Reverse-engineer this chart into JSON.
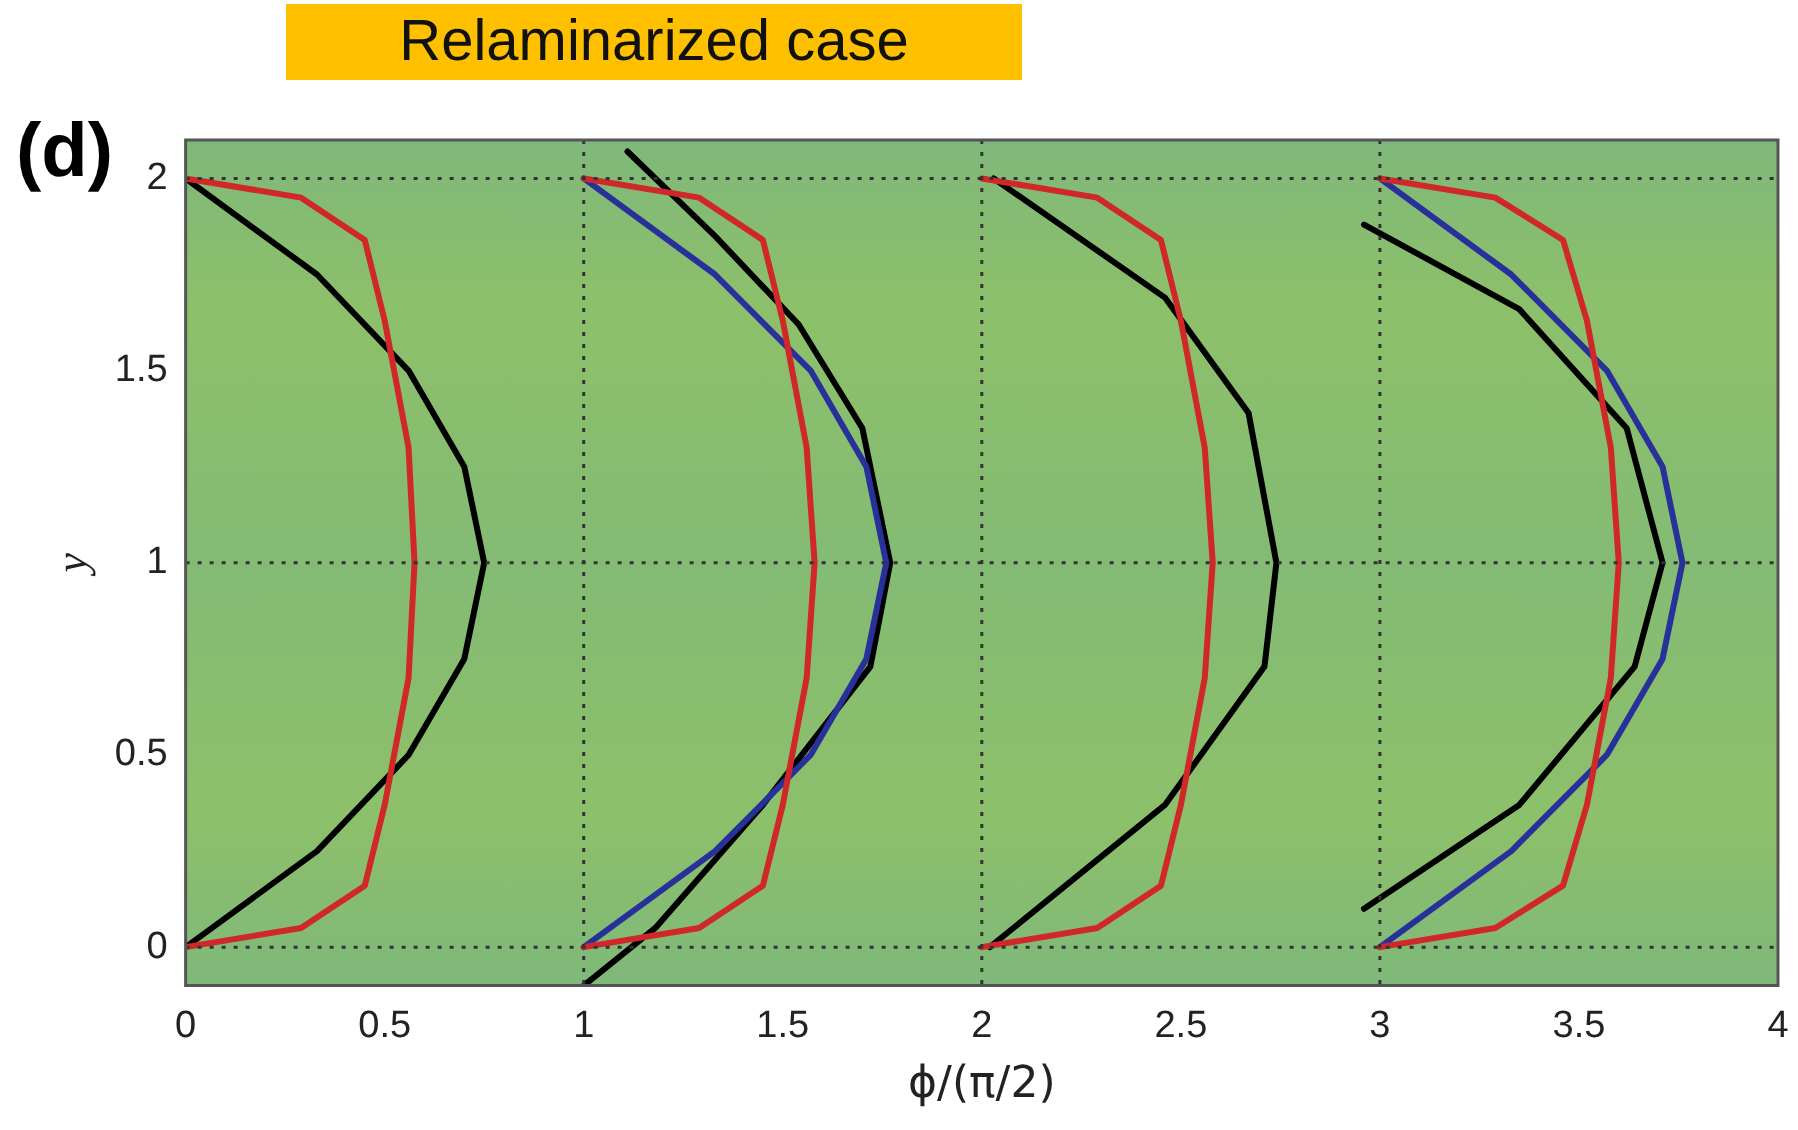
{
  "chart_data": {
    "type": "line",
    "title": "Relaminarized case",
    "xlabel": "ϕ/(π/2)",
    "ylabel": "y",
    "annotations": [
      "(d)"
    ],
    "xlim": [
      0,
      4
    ],
    "ylim": [
      -0.1,
      2.1
    ],
    "xticks": [
      0,
      0.5,
      1,
      1.5,
      2,
      2.5,
      3,
      3.5,
      4
    ],
    "yticks": [
      0,
      0.5,
      1,
      1.5,
      2
    ],
    "grid": false,
    "legend": false,
    "marker": "none",
    "line_style": "solid",
    "ref_lines": [
      {
        "axis": "x",
        "value": 1,
        "line_style": "dotted",
        "color": "#333333"
      },
      {
        "axis": "x",
        "value": 2,
        "line_style": "dotted",
        "color": "#333333"
      },
      {
        "axis": "x",
        "value": 3,
        "line_style": "dotted",
        "color": "#333333"
      },
      {
        "axis": "y",
        "value": 0,
        "line_style": "dotted",
        "color": "#333333"
      },
      {
        "axis": "y",
        "value": 1,
        "line_style": "dotted",
        "color": "#333333"
      },
      {
        "axis": "y",
        "value": 2,
        "line_style": "dotted",
        "color": "#333333"
      }
    ],
    "series": [
      {
        "color": "#d02828",
        "x": [
          0,
          0.29,
          0.45,
          0.5,
          0.56,
          0.575,
          0.56,
          0.5,
          0.45,
          0.29,
          0
        ],
        "values": [
          0,
          0.05,
          0.16,
          0.37,
          0.7,
          1,
          1.3,
          1.63,
          1.84,
          1.95,
          2
        ]
      },
      {
        "color": "#000000",
        "x": [
          0,
          0.33,
          0.56,
          0.7,
          0.75,
          0.7,
          0.56,
          0.33,
          0
        ],
        "values": [
          0,
          0.25,
          0.5,
          0.75,
          1,
          1.25,
          1.5,
          1.75,
          2
        ]
      },
      {
        "color": "#d02828",
        "x": [
          1,
          1.29,
          1.45,
          1.5,
          1.56,
          1.58,
          1.56,
          1.5,
          1.45,
          1.29,
          1
        ],
        "values": [
          0,
          0.05,
          0.16,
          0.37,
          0.7,
          1,
          1.3,
          1.63,
          1.84,
          1.95,
          2
        ]
      },
      {
        "color": "#28309a",
        "x": [
          1,
          1.33,
          1.57,
          1.71,
          1.76,
          1.71,
          1.57,
          1.33,
          1
        ],
        "values": [
          0,
          0.25,
          0.5,
          0.75,
          1,
          1.25,
          1.5,
          1.75,
          2
        ]
      },
      {
        "color": "#000000",
        "x": [
          1,
          1.18,
          1.45,
          1.72,
          1.77,
          1.7,
          1.54,
          1.33,
          1.11
        ],
        "values": [
          -0.1,
          0.05,
          0.37,
          0.73,
          1,
          1.35,
          1.62,
          1.85,
          2.07
        ]
      },
      {
        "color": "#d02828",
        "x": [
          2,
          2.29,
          2.45,
          2.5,
          2.56,
          2.58,
          2.56,
          2.5,
          2.45,
          2.29,
          2
        ],
        "values": [
          0,
          0.05,
          0.16,
          0.37,
          0.7,
          1,
          1.3,
          1.63,
          1.84,
          1.95,
          2
        ]
      },
      {
        "color": "#000000",
        "x": [
          2.02,
          2.46,
          2.71,
          2.74,
          2.67,
          2.46,
          2.03
        ],
        "values": [
          0,
          0.37,
          0.73,
          1,
          1.39,
          1.69,
          2
        ]
      },
      {
        "color": "#d02828",
        "x": [
          3,
          3.29,
          3.46,
          3.52,
          3.58,
          3.6,
          3.58,
          3.52,
          3.46,
          3.29,
          3
        ],
        "values": [
          0,
          0.05,
          0.16,
          0.37,
          0.7,
          1,
          1.3,
          1.63,
          1.84,
          1.95,
          2
        ]
      },
      {
        "color": "#28309a",
        "x": [
          3,
          3.33,
          3.57,
          3.71,
          3.76,
          3.71,
          3.57,
          3.33,
          3
        ],
        "values": [
          0,
          0.25,
          0.5,
          0.75,
          1,
          1.25,
          1.5,
          1.75,
          2
        ]
      },
      {
        "color": "#000000",
        "x": [
          2.96,
          3.35,
          3.64,
          3.71,
          3.62,
          3.35,
          2.96
        ],
        "values": [
          0.1,
          0.37,
          0.73,
          1,
          1.35,
          1.66,
          1.88
        ]
      }
    ]
  }
}
